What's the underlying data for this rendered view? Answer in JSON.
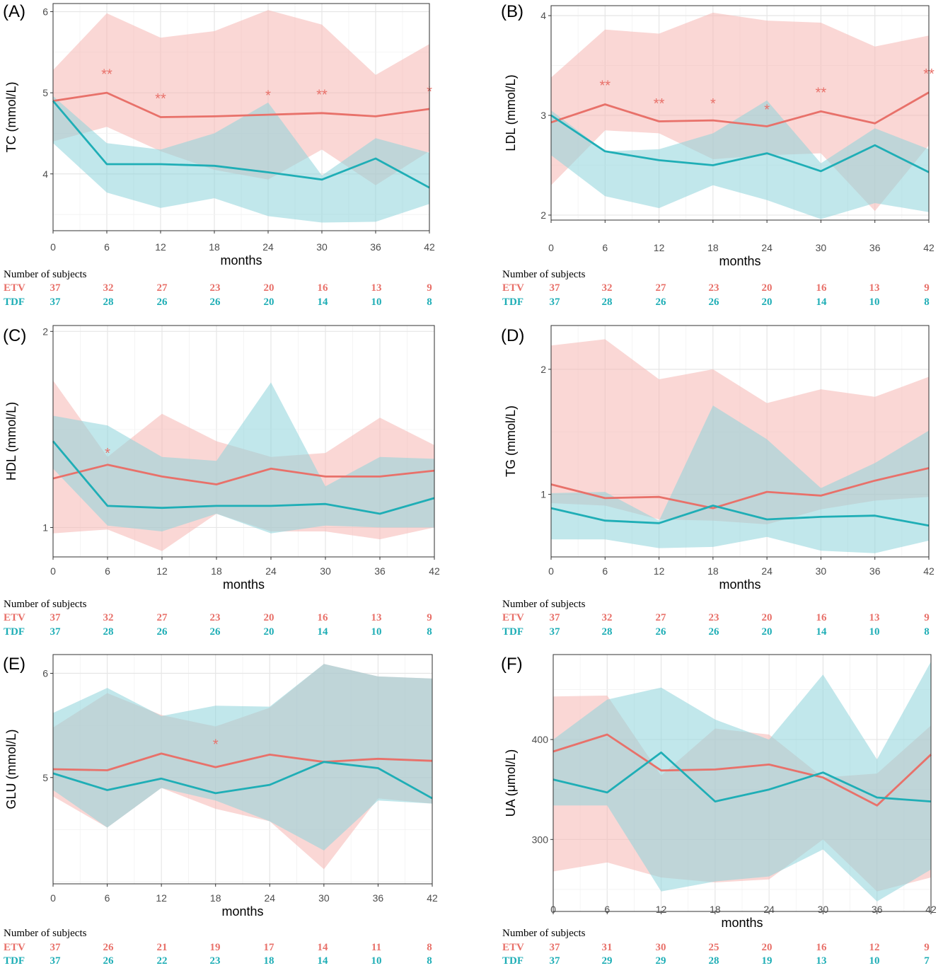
{
  "colors": {
    "etv": "#E8716A",
    "tdf": "#1FAEB6",
    "etv_band": "#F5B7B2",
    "tdf_band": "#8ED3DA"
  },
  "groups": [
    "ETV",
    "TDF"
  ],
  "subjects_title": "Number of subjects",
  "chart_data": [
    {
      "panel": "(A)",
      "type": "line",
      "xlabel": "months",
      "ylabel": "TC (mmol/L)",
      "x": [
        0,
        6,
        12,
        18,
        24,
        30,
        36,
        42
      ],
      "ylim": [
        3.3,
        6.1
      ],
      "yticks": [
        4,
        5,
        6
      ],
      "ylabels": [
        "4",
        "5",
        "6"
      ],
      "series": [
        {
          "name": "ETV",
          "values": [
            4.9,
            5.0,
            4.7,
            4.71,
            4.73,
            4.75,
            4.71,
            4.8
          ],
          "lower": [
            4.4,
            4.58,
            4.28,
            4.05,
            3.93,
            4.3,
            3.86,
            4.28
          ],
          "upper": [
            5.28,
            5.98,
            5.68,
            5.76,
            6.02,
            5.84,
            5.22,
            5.6
          ]
        },
        {
          "name": "TDF",
          "values": [
            4.9,
            4.12,
            4.12,
            4.1,
            4.02,
            3.93,
            4.19,
            3.83
          ],
          "lower": [
            4.38,
            3.77,
            3.58,
            3.7,
            3.48,
            3.4,
            3.41,
            3.63
          ],
          "upper": [
            4.96,
            4.38,
            4.3,
            4.5,
            4.88,
            3.98,
            4.44,
            4.26
          ]
        }
      ],
      "annotations": [
        {
          "x": 6,
          "y": 5.23,
          "text": "**"
        },
        {
          "x": 12,
          "y": 4.93,
          "text": "**"
        },
        {
          "x": 24,
          "y": 4.97,
          "text": "*"
        },
        {
          "x": 30,
          "y": 4.98,
          "text": "**"
        },
        {
          "x": 42,
          "y": 5.02,
          "text": "*"
        }
      ],
      "subjects": {
        "ETV": [
          "37",
          "32",
          "27",
          "23",
          "20",
          "16",
          "13",
          "9"
        ],
        "TDF": [
          "37",
          "28",
          "26",
          "26",
          "20",
          "14",
          "10",
          "8"
        ]
      }
    },
    {
      "panel": "(B)",
      "type": "line",
      "xlabel": "months",
      "ylabel": "LDL (mmol/L)",
      "x": [
        0,
        6,
        12,
        18,
        24,
        30,
        36,
        42
      ],
      "ylim": [
        1.95,
        4.1
      ],
      "yticks": [
        2,
        3,
        4
      ],
      "ylabels": [
        "2",
        "3",
        "4"
      ],
      "series": [
        {
          "name": "ETV",
          "values": [
            2.93,
            3.11,
            2.94,
            2.95,
            2.89,
            3.04,
            2.92,
            3.23
          ],
          "lower": [
            2.3,
            2.85,
            2.82,
            2.56,
            2.6,
            2.62,
            2.04,
            2.7
          ],
          "upper": [
            3.38,
            3.86,
            3.82,
            4.03,
            3.95,
            3.93,
            3.69,
            3.8
          ]
        },
        {
          "name": "TDF",
          "values": [
            3.0,
            2.64,
            2.55,
            2.5,
            2.62,
            2.44,
            2.7,
            2.43
          ],
          "lower": [
            2.6,
            2.19,
            2.07,
            2.3,
            2.15,
            1.96,
            2.12,
            2.03
          ],
          "upper": [
            3.05,
            2.64,
            2.66,
            2.82,
            3.15,
            2.52,
            2.87,
            2.66
          ]
        }
      ],
      "annotations": [
        {
          "x": 6,
          "y": 3.3,
          "text": "**"
        },
        {
          "x": 12,
          "y": 3.12,
          "text": "**"
        },
        {
          "x": 18,
          "y": 3.12,
          "text": "*"
        },
        {
          "x": 24,
          "y": 3.06,
          "text": "*"
        },
        {
          "x": 30,
          "y": 3.23,
          "text": "**"
        },
        {
          "x": 42,
          "y": 3.42,
          "text": "**"
        }
      ],
      "subjects": {
        "ETV": [
          "37",
          "32",
          "27",
          "23",
          "20",
          "16",
          "13",
          "9"
        ],
        "TDF": [
          "37",
          "28",
          "26",
          "26",
          "20",
          "14",
          "10",
          "8"
        ]
      }
    },
    {
      "panel": "(C)",
      "type": "line",
      "xlabel": "months",
      "ylabel": "HDL (mmol/L)",
      "x": [
        0,
        6,
        12,
        18,
        24,
        30,
        36,
        42
      ],
      "ylim": [
        0.85,
        2.03
      ],
      "yticks": [
        1,
        2
      ],
      "ylabels": [
        "1",
        "2"
      ],
      "series": [
        {
          "name": "ETV",
          "values": [
            1.25,
            1.32,
            1.26,
            1.22,
            1.3,
            1.26,
            1.26,
            1.29
          ],
          "lower": [
            0.97,
            0.99,
            0.88,
            1.07,
            0.98,
            0.98,
            0.94,
            1.0
          ],
          "upper": [
            1.75,
            1.36,
            1.58,
            1.44,
            1.36,
            1.38,
            1.56,
            1.42
          ]
        },
        {
          "name": "TDF",
          "values": [
            1.44,
            1.11,
            1.1,
            1.11,
            1.11,
            1.12,
            1.07,
            1.15
          ],
          "lower": [
            1.3,
            1.01,
            0.98,
            1.07,
            0.97,
            1.01,
            1.0,
            1.0
          ],
          "upper": [
            1.57,
            1.52,
            1.36,
            1.34,
            1.74,
            1.21,
            1.36,
            1.35
          ]
        }
      ],
      "annotations": [
        {
          "x": 6,
          "y": 1.38,
          "text": "*"
        }
      ],
      "subjects": {
        "ETV": [
          "37",
          "32",
          "27",
          "23",
          "20",
          "16",
          "13",
          "9"
        ],
        "TDF": [
          "37",
          "28",
          "26",
          "26",
          "20",
          "14",
          "10",
          "8"
        ]
      }
    },
    {
      "panel": "(D)",
      "type": "line",
      "xlabel": "months",
      "ylabel": "TG (mmol/L)",
      "x": [
        0,
        6,
        12,
        18,
        24,
        30,
        36,
        42
      ],
      "ylim": [
        0.5,
        2.35
      ],
      "yticks": [
        1,
        2
      ],
      "ylabels": [
        "1",
        "2"
      ],
      "series": [
        {
          "name": "ETV",
          "values": [
            1.08,
            0.97,
            0.98,
            0.89,
            1.02,
            0.99,
            1.11,
            1.21
          ],
          "lower": [
            0.93,
            0.91,
            0.8,
            0.79,
            0.76,
            0.88,
            0.95,
            0.98
          ],
          "upper": [
            2.19,
            2.24,
            1.92,
            2.0,
            1.73,
            1.84,
            1.78,
            1.94
          ]
        },
        {
          "name": "TDF",
          "values": [
            0.89,
            0.79,
            0.77,
            0.91,
            0.8,
            0.82,
            0.83,
            0.75
          ],
          "lower": [
            0.64,
            0.64,
            0.57,
            0.58,
            0.66,
            0.55,
            0.53,
            0.63
          ],
          "upper": [
            1.01,
            1.02,
            0.79,
            1.71,
            1.44,
            1.05,
            1.25,
            1.51
          ]
        }
      ],
      "annotations": [],
      "subjects": {
        "ETV": [
          "37",
          "32",
          "27",
          "23",
          "20",
          "16",
          "13",
          "9"
        ],
        "TDF": [
          "37",
          "28",
          "26",
          "26",
          "20",
          "14",
          "10",
          "8"
        ]
      }
    },
    {
      "panel": "(E)",
      "type": "line",
      "xlabel": "months",
      "ylabel": "GLU (mmol/L)",
      "x": [
        0,
        6,
        12,
        18,
        24,
        30,
        36,
        42
      ],
      "ylim": [
        3.98,
        6.18
      ],
      "yticks": [
        5,
        6
      ],
      "ylabels": [
        "5",
        "6"
      ],
      "series": [
        {
          "name": "ETV",
          "values": [
            5.08,
            5.07,
            5.23,
            5.1,
            5.22,
            5.15,
            5.18,
            5.16
          ],
          "lower": [
            4.82,
            4.52,
            4.9,
            4.7,
            4.58,
            4.12,
            4.8,
            4.75
          ],
          "upper": [
            5.48,
            5.81,
            5.6,
            5.49,
            5.67,
            6.09,
            5.97,
            5.95
          ]
        },
        {
          "name": "TDF",
          "values": [
            5.04,
            4.88,
            4.99,
            4.85,
            4.93,
            5.15,
            5.09,
            4.8
          ],
          "lower": [
            4.88,
            4.52,
            4.9,
            4.78,
            4.58,
            4.3,
            4.78,
            4.75
          ],
          "upper": [
            5.62,
            5.86,
            5.59,
            5.69,
            5.68,
            6.09,
            5.97,
            5.95
          ]
        }
      ],
      "annotations": [
        {
          "x": 18,
          "y": 5.32,
          "text": "*"
        }
      ],
      "subjects": {
        "ETV": [
          "37",
          "26",
          "21",
          "19",
          "17",
          "14",
          "11",
          "8"
        ],
        "TDF": [
          "37",
          "26",
          "22",
          "23",
          "18",
          "14",
          "10",
          "8"
        ]
      }
    },
    {
      "panel": "(F)",
      "type": "line",
      "xlabel": "months",
      "ylabel": "UA (μmol/L)",
      "x": [
        0,
        6,
        12,
        18,
        24,
        30,
        36,
        42
      ],
      "ylim": [
        228,
        485
      ],
      "yticks": [
        300,
        400
      ],
      "ylabels": [
        "300",
        "400"
      ],
      "series": [
        {
          "name": "ETV",
          "values": [
            388,
            405,
            369,
            370,
            375,
            362,
            334,
            385
          ],
          "lower": [
            268,
            277,
            262,
            257,
            260,
            300,
            248,
            262
          ],
          "upper": [
            443,
            444,
            364,
            411,
            405,
            362,
            366,
            414
          ]
        },
        {
          "name": "TDF",
          "values": [
            360,
            347,
            387,
            338,
            350,
            367,
            342,
            338
          ],
          "lower": [
            334,
            334,
            248,
            258,
            263,
            290,
            238,
            270
          ],
          "upper": [
            400,
            440,
            452,
            420,
            400,
            465,
            380,
            478
          ]
        }
      ],
      "annotations": [],
      "subjects": {
        "ETV": [
          "37",
          "31",
          "30",
          "25",
          "20",
          "16",
          "12",
          "9"
        ],
        "TDF": [
          "37",
          "29",
          "29",
          "28",
          "19",
          "13",
          "10",
          "7"
        ]
      }
    }
  ]
}
